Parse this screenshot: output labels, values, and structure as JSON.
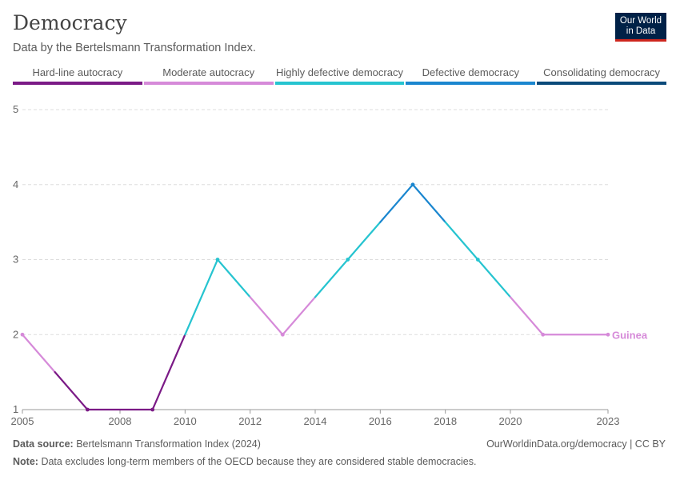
{
  "header": {
    "title": "Democracy",
    "subtitle": "Data by the Bertelsmann Transformation Index."
  },
  "logo": {
    "line1": "Our World",
    "line2": "in Data"
  },
  "colors": {
    "hard_line_autocracy": "#7b1a86",
    "moderate_autocracy": "#d68ad9",
    "highly_defective_democracy": "#26c4d0",
    "defective_democracy": "#1a86cf",
    "consolidating_democracy": "#0b4a7a",
    "grid": "#dddddd",
    "axis": "#999999"
  },
  "legend": [
    {
      "label": "Hard-line autocracy",
      "color": "#7b1a86"
    },
    {
      "label": "Moderate autocracy",
      "color": "#d68ad9"
    },
    {
      "label": "Highly defective democracy",
      "color": "#26c4d0"
    },
    {
      "label": "Defective democracy",
      "color": "#1a86cf"
    },
    {
      "label": "Consolidating democracy",
      "color": "#0b4a7a"
    }
  ],
  "chart_data": {
    "type": "line",
    "title": "Democracy",
    "subtitle": "Data by the Bertelsmann Transformation Index.",
    "xlabel": "",
    "ylabel": "",
    "xlim": [
      2005,
      2023
    ],
    "ylim": [
      1,
      5
    ],
    "x_ticks": [
      2005,
      2008,
      2010,
      2012,
      2014,
      2016,
      2018,
      2020,
      2023
    ],
    "y_ticks": [
      1,
      2,
      3,
      4,
      5
    ],
    "grid": true,
    "legend_position": "top",
    "series": [
      {
        "name": "Guinea",
        "x": [
          2005,
          2007,
          2009,
          2011,
          2013,
          2015,
          2017,
          2019,
          2021,
          2023
        ],
        "y": [
          2,
          1,
          1,
          3,
          2,
          3,
          4,
          3,
          2,
          2
        ]
      }
    ]
  },
  "footer": {
    "source_label": "Data source:",
    "source_text": "Bertelsmann Transformation Index (2024)",
    "url_text": "OurWorldinData.org/democracy | CC BY",
    "note_label": "Note:",
    "note_text": "Data excludes long-term members of the OECD because they are considered stable democracies."
  }
}
